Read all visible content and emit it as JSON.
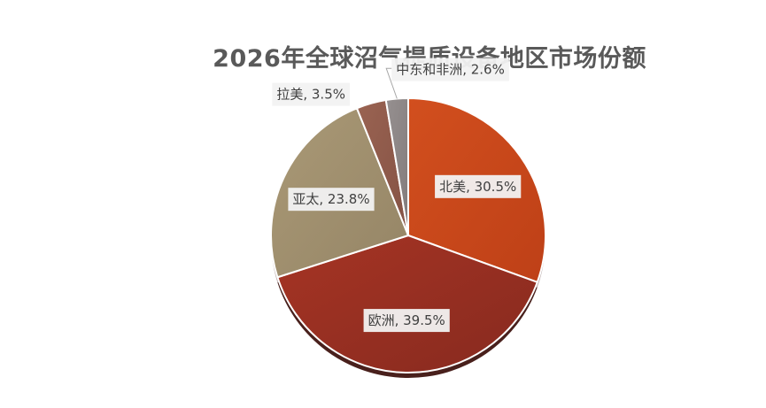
{
  "chart_data": {
    "type": "pie",
    "title": "2026年全球沼气提质设备地区市场份额",
    "categories": [
      "北美",
      "欧洲",
      "亚太",
      "拉美",
      "中东和非洲"
    ],
    "values": [
      30.5,
      39.5,
      23.8,
      3.5,
      2.6
    ],
    "data_labels": [
      "北美, 30.5%",
      "欧洲, 39.5%",
      "亚太, 23.8%",
      "拉美, 3.5%",
      "中东和非洲, 2.6%"
    ],
    "colors": [
      "#c8471b",
      "#952f22",
      "#a39270",
      "#8f5a4a",
      "#8d8585"
    ],
    "legend": "none",
    "start_angle_deg": 0,
    "direction": "clockwise"
  }
}
